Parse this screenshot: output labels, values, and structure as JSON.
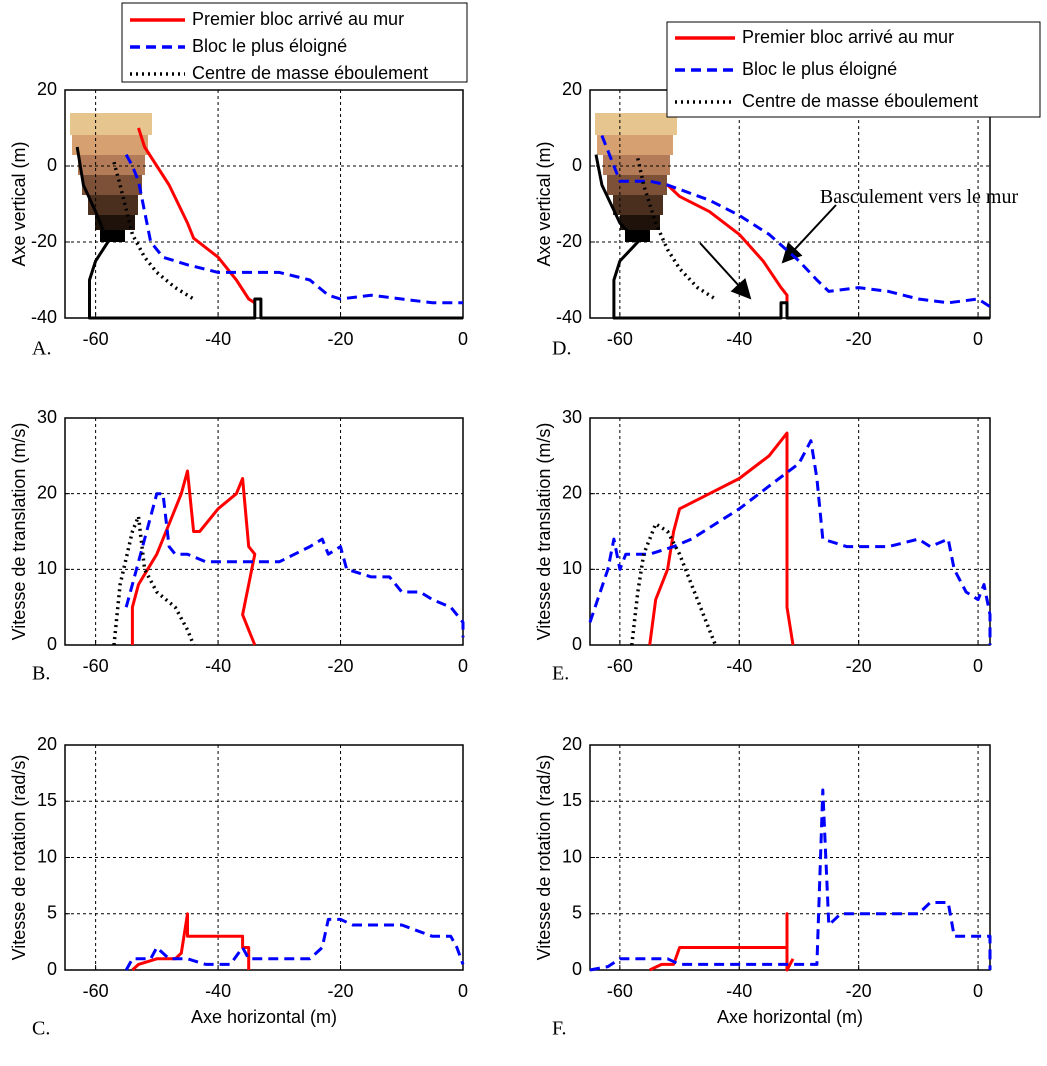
{
  "chart_data": [
    {
      "type": "line",
      "label": "A.",
      "ylabel": "Axe vertical (m)",
      "xlim": [
        -65,
        0
      ],
      "ylim": [
        -40,
        20
      ],
      "xticks": [
        -60,
        -40,
        -20,
        0
      ],
      "yticks": [
        -40,
        -20,
        0,
        20
      ],
      "grid": true,
      "series": [
        {
          "name": "Premier bloc arrivé au mur",
          "color": "#ff0000",
          "style": "solid",
          "x": [
            -53,
            -52,
            -48,
            -45,
            -44,
            -40,
            -37,
            -35,
            -34
          ],
          "values": [
            10,
            5,
            -5,
            -15,
            -19,
            -24,
            -30,
            -35,
            -36
          ]
        },
        {
          "name": "Bloc le plus éloigné",
          "color": "#0000ff",
          "style": "dashed",
          "x": [
            -55,
            -54,
            -53,
            -51,
            -49,
            -45,
            -40,
            -35,
            -30,
            -25,
            -22,
            -20,
            -15,
            -10,
            -5,
            0
          ],
          "values": [
            3,
            0,
            -4,
            -20,
            -24,
            -26,
            -28,
            -28,
            -28,
            -30,
            -34,
            -35,
            -34,
            -35,
            -36,
            -36
          ]
        },
        {
          "name": "Centre de masse éboulement",
          "color": "#000000",
          "style": "dotted",
          "x": [
            -57,
            -56,
            -54,
            -52,
            -50,
            -47,
            -44
          ],
          "values": [
            1,
            -5,
            -18,
            -24,
            -28,
            -32,
            -35
          ]
        },
        {
          "color": "#000000",
          "style": "solid",
          "x": [
            -63,
            -62,
            -60,
            -58,
            -60,
            -61,
            -61,
            -34,
            -34,
            -33,
            -33,
            0
          ],
          "values": [
            5,
            -5,
            -12,
            -20,
            -25,
            -30,
            -40,
            -40,
            -35,
            -35,
            -40,
            -40
          ]
        }
      ]
    },
    {
      "type": "line",
      "label": "B.",
      "ylabel": "Vitesse de translation (m/s)",
      "xlim": [
        -65,
        0
      ],
      "ylim": [
        0,
        30
      ],
      "xticks": [
        -60,
        -40,
        -20,
        0
      ],
      "yticks": [
        0,
        10,
        20,
        30
      ],
      "grid": true,
      "series": [
        {
          "color": "#ff0000",
          "style": "solid",
          "x": [
            -54,
            -54,
            -53,
            -50,
            -48,
            -46,
            -45,
            -44,
            -43,
            -40,
            -37,
            -36,
            -35,
            -34,
            -35,
            -36,
            -35,
            -34
          ],
          "values": [
            0,
            5,
            8,
            12,
            16,
            20,
            23,
            15,
            15,
            18,
            20,
            22,
            13,
            12,
            8,
            4,
            2,
            0
          ]
        },
        {
          "color": "#0000ff",
          "style": "dashed",
          "x": [
            -55,
            -54,
            -52,
            -50,
            -49,
            -48,
            -47,
            -45,
            -42,
            -38,
            -35,
            -30,
            -25,
            -23,
            -22,
            -20,
            -19,
            -15,
            -12,
            -10,
            -7,
            -5,
            -2,
            0,
            0
          ],
          "values": [
            5,
            8,
            14,
            20,
            20,
            13,
            12,
            12,
            11,
            11,
            11,
            11,
            13,
            14,
            12,
            13,
            10,
            9,
            9,
            7,
            7,
            6,
            5,
            3,
            1
          ]
        },
        {
          "color": "#000000",
          "style": "dotted",
          "x": [
            -57,
            -56,
            -54,
            -53,
            -52,
            -50,
            -47,
            -45,
            -44
          ],
          "values": [
            0,
            8,
            15,
            17,
            10,
            7,
            5,
            2,
            0
          ]
        }
      ]
    },
    {
      "type": "line",
      "label": "C.",
      "ylabel": "Vitesse de rotation (rad/s)",
      "xlabel": "Axe horizontal (m)",
      "xlim": [
        -65,
        0
      ],
      "ylim": [
        0,
        20
      ],
      "xticks": [
        -60,
        -40,
        -20,
        0
      ],
      "yticks": [
        0,
        5,
        10,
        15,
        20
      ],
      "grid": true,
      "series": [
        {
          "color": "#ff0000",
          "style": "solid",
          "x": [
            -54,
            -53,
            -50,
            -47,
            -46,
            -45,
            -45,
            -40,
            -36,
            -36,
            -35,
            -35
          ],
          "values": [
            0,
            0.5,
            1,
            1,
            1.5,
            5,
            3,
            3,
            3,
            2,
            2,
            0
          ]
        },
        {
          "color": "#0000ff",
          "style": "dashed",
          "x": [
            -55,
            -54,
            -51,
            -50,
            -48,
            -45,
            -42,
            -38,
            -36,
            -35,
            -30,
            -25,
            -23,
            -22,
            -20,
            -18,
            -10,
            -5,
            -2,
            -1,
            0
          ],
          "values": [
            0,
            1,
            1,
            2,
            1,
            1,
            0.5,
            0.5,
            2,
            1,
            1,
            1,
            2,
            4.5,
            4.5,
            4,
            4,
            3,
            3,
            2,
            0.5
          ]
        }
      ]
    },
    {
      "type": "line",
      "label": "D.",
      "ylabel": "Axe vertical (m)",
      "xlim": [
        -65,
        2
      ],
      "ylim": [
        -40,
        20
      ],
      "xticks": [
        -60,
        -40,
        -20,
        0
      ],
      "yticks": [
        -40,
        -20,
        0,
        20
      ],
      "grid": true,
      "annotation": "Basculement vers le mur",
      "series": [
        {
          "name": "Premier bloc arrivé au mur",
          "color": "#ff0000",
          "style": "solid",
          "x": [
            -52,
            -50,
            -45,
            -40,
            -36,
            -33,
            -32,
            -32
          ],
          "values": [
            -5,
            -8,
            -12,
            -18,
            -25,
            -32,
            -34,
            -36
          ]
        },
        {
          "name": "Bloc le plus éloigné",
          "color": "#0000ff",
          "style": "dashed",
          "x": [
            -63,
            -61,
            -60,
            -55,
            -52,
            -45,
            -40,
            -35,
            -30,
            -27,
            -25,
            -20,
            -15,
            -10,
            -5,
            0,
            2
          ],
          "values": [
            8,
            0,
            -4,
            -4,
            -5,
            -9,
            -13,
            -18,
            -25,
            -30,
            -33,
            -32,
            -33,
            -35,
            -36,
            -35,
            -37
          ]
        },
        {
          "name": "Centre de masse éboulement",
          "color": "#000000",
          "style": "dotted",
          "x": [
            -57,
            -56,
            -54,
            -52,
            -50,
            -47,
            -44
          ],
          "values": [
            2,
            -5,
            -15,
            -22,
            -27,
            -32,
            -35
          ]
        },
        {
          "color": "#000000",
          "style": "solid",
          "x": [
            -64,
            -63,
            -60,
            -57,
            -60,
            -61,
            -61,
            -33,
            -33,
            -32,
            -32,
            2
          ],
          "values": [
            3,
            -5,
            -15,
            -20,
            -25,
            -30,
            -40,
            -40,
            -36,
            -36,
            -40,
            -40
          ]
        }
      ]
    },
    {
      "type": "line",
      "label": "E.",
      "ylabel": "Vitesse de translation (m/s)",
      "xlim": [
        -65,
        2
      ],
      "ylim": [
        0,
        30
      ],
      "xticks": [
        -60,
        -40,
        -20,
        0
      ],
      "yticks": [
        0,
        10,
        20,
        30
      ],
      "grid": true,
      "series": [
        {
          "color": "#ff0000",
          "style": "solid",
          "x": [
            -55,
            -54,
            -52,
            -51,
            -50,
            -45,
            -40,
            -35,
            -32,
            -32,
            -32,
            -31
          ],
          "values": [
            0,
            6,
            10,
            15,
            18,
            20,
            22,
            25,
            28,
            15,
            5,
            0
          ]
        },
        {
          "color": "#0000ff",
          "style": "dashed",
          "x": [
            -65,
            -62,
            -61,
            -60,
            -59,
            -55,
            -51,
            -48,
            -40,
            -35,
            -30,
            -28,
            -27,
            -26,
            -22,
            -15,
            -10,
            -8,
            -5,
            -4,
            -2,
            0,
            1,
            2,
            2
          ],
          "values": [
            3,
            10,
            14,
            10,
            12,
            12,
            13,
            14,
            18,
            21,
            24,
            27,
            22,
            14,
            13,
            13,
            14,
            13,
            14,
            10,
            7,
            6,
            8,
            4,
            0
          ]
        },
        {
          "color": "#000000",
          "style": "dotted",
          "x": [
            -58,
            -57,
            -56,
            -54,
            -52,
            -50,
            -48,
            -46,
            -44
          ],
          "values": [
            0,
            7,
            12,
            16,
            15,
            12,
            8,
            4,
            0
          ]
        }
      ]
    },
    {
      "type": "line",
      "label": "F.",
      "ylabel": "Vitesse de rotation (rad/s)",
      "xlabel": "Axe horizontal (m)",
      "xlim": [
        -65,
        2
      ],
      "ylim": [
        0,
        20
      ],
      "xticks": [
        -60,
        -40,
        -20,
        0
      ],
      "yticks": [
        0,
        5,
        10,
        15,
        20
      ],
      "grid": true,
      "series": [
        {
          "color": "#ff0000",
          "style": "solid",
          "x": [
            -55,
            -53,
            -51,
            -50,
            -48,
            -40,
            -35,
            -32,
            -32,
            -32,
            -31
          ],
          "values": [
            0,
            0.5,
            0.5,
            2,
            2,
            2,
            2,
            2,
            5,
            0,
            1
          ]
        },
        {
          "color": "#0000ff",
          "style": "dashed",
          "x": [
            -65,
            -62,
            -60,
            -55,
            -52,
            -50,
            -40,
            -30,
            -27,
            -26,
            -25,
            -23,
            -15,
            -10,
            -8,
            -5,
            -4,
            0,
            2,
            2
          ],
          "values": [
            0,
            0.3,
            1,
            1,
            1,
            0.5,
            0.5,
            0.5,
            0.5,
            16,
            4,
            5,
            5,
            5,
            6,
            6,
            3,
            3,
            3,
            0
          ]
        }
      ]
    }
  ]
}
